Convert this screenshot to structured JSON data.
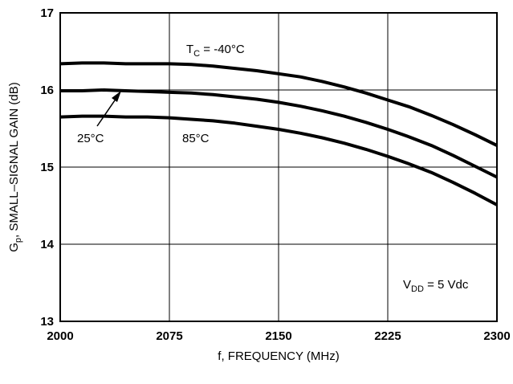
{
  "chart_data": {
    "type": "line",
    "title": "",
    "xlabel": "f, FREQUENCY (MHz)",
    "ylabel": {
      "main": "G",
      "sub": "p",
      "rest": ", SMALL–SIGNAL GAIN (dB)"
    },
    "xlim": [
      2000,
      2300
    ],
    "ylim": [
      13,
      17
    ],
    "x_ticks": [
      2000,
      2075,
      2150,
      2225,
      2300
    ],
    "y_ticks": [
      13,
      14,
      15,
      16,
      17
    ],
    "grid": true,
    "series": [
      {
        "name": "T_C = -40°C",
        "x": [
          2000,
          2015,
          2030,
          2045,
          2060,
          2075,
          2090,
          2105,
          2120,
          2135,
          2150,
          2165,
          2180,
          2195,
          2210,
          2225,
          2240,
          2255,
          2270,
          2285,
          2300
        ],
        "values": [
          16.34,
          16.35,
          16.35,
          16.34,
          16.34,
          16.34,
          16.33,
          16.31,
          16.28,
          16.25,
          16.21,
          16.17,
          16.11,
          16.04,
          15.96,
          15.87,
          15.78,
          15.67,
          15.55,
          15.42,
          15.28
        ]
      },
      {
        "name": "25°C",
        "x": [
          2000,
          2015,
          2030,
          2045,
          2060,
          2075,
          2090,
          2105,
          2120,
          2135,
          2150,
          2165,
          2180,
          2195,
          2210,
          2225,
          2240,
          2255,
          2270,
          2285,
          2300
        ],
        "values": [
          15.99,
          15.99,
          16.0,
          15.99,
          15.98,
          15.97,
          15.96,
          15.94,
          15.91,
          15.88,
          15.84,
          15.79,
          15.73,
          15.66,
          15.58,
          15.49,
          15.39,
          15.28,
          15.15,
          15.01,
          14.87
        ]
      },
      {
        "name": "85°C",
        "x": [
          2000,
          2015,
          2030,
          2045,
          2060,
          2075,
          2090,
          2105,
          2120,
          2135,
          2150,
          2165,
          2180,
          2195,
          2210,
          2225,
          2240,
          2255,
          2270,
          2285,
          2300
        ],
        "values": [
          15.65,
          15.66,
          15.66,
          15.65,
          15.65,
          15.64,
          15.62,
          15.6,
          15.57,
          15.53,
          15.49,
          15.44,
          15.38,
          15.31,
          15.23,
          15.14,
          15.04,
          14.93,
          14.8,
          14.66,
          14.51
        ]
      }
    ],
    "annotations": {
      "tc_main": "T",
      "tc_sub": "C",
      "tc_rest": " = -40°C",
      "t25": "25°C",
      "t85": "85°C",
      "vdd_main": "V",
      "vdd_sub": "DD",
      "vdd_rest": " = 5 Vdc"
    },
    "colors": {
      "line": "#000000",
      "grid": "#000000",
      "background": "#ffffff"
    }
  }
}
